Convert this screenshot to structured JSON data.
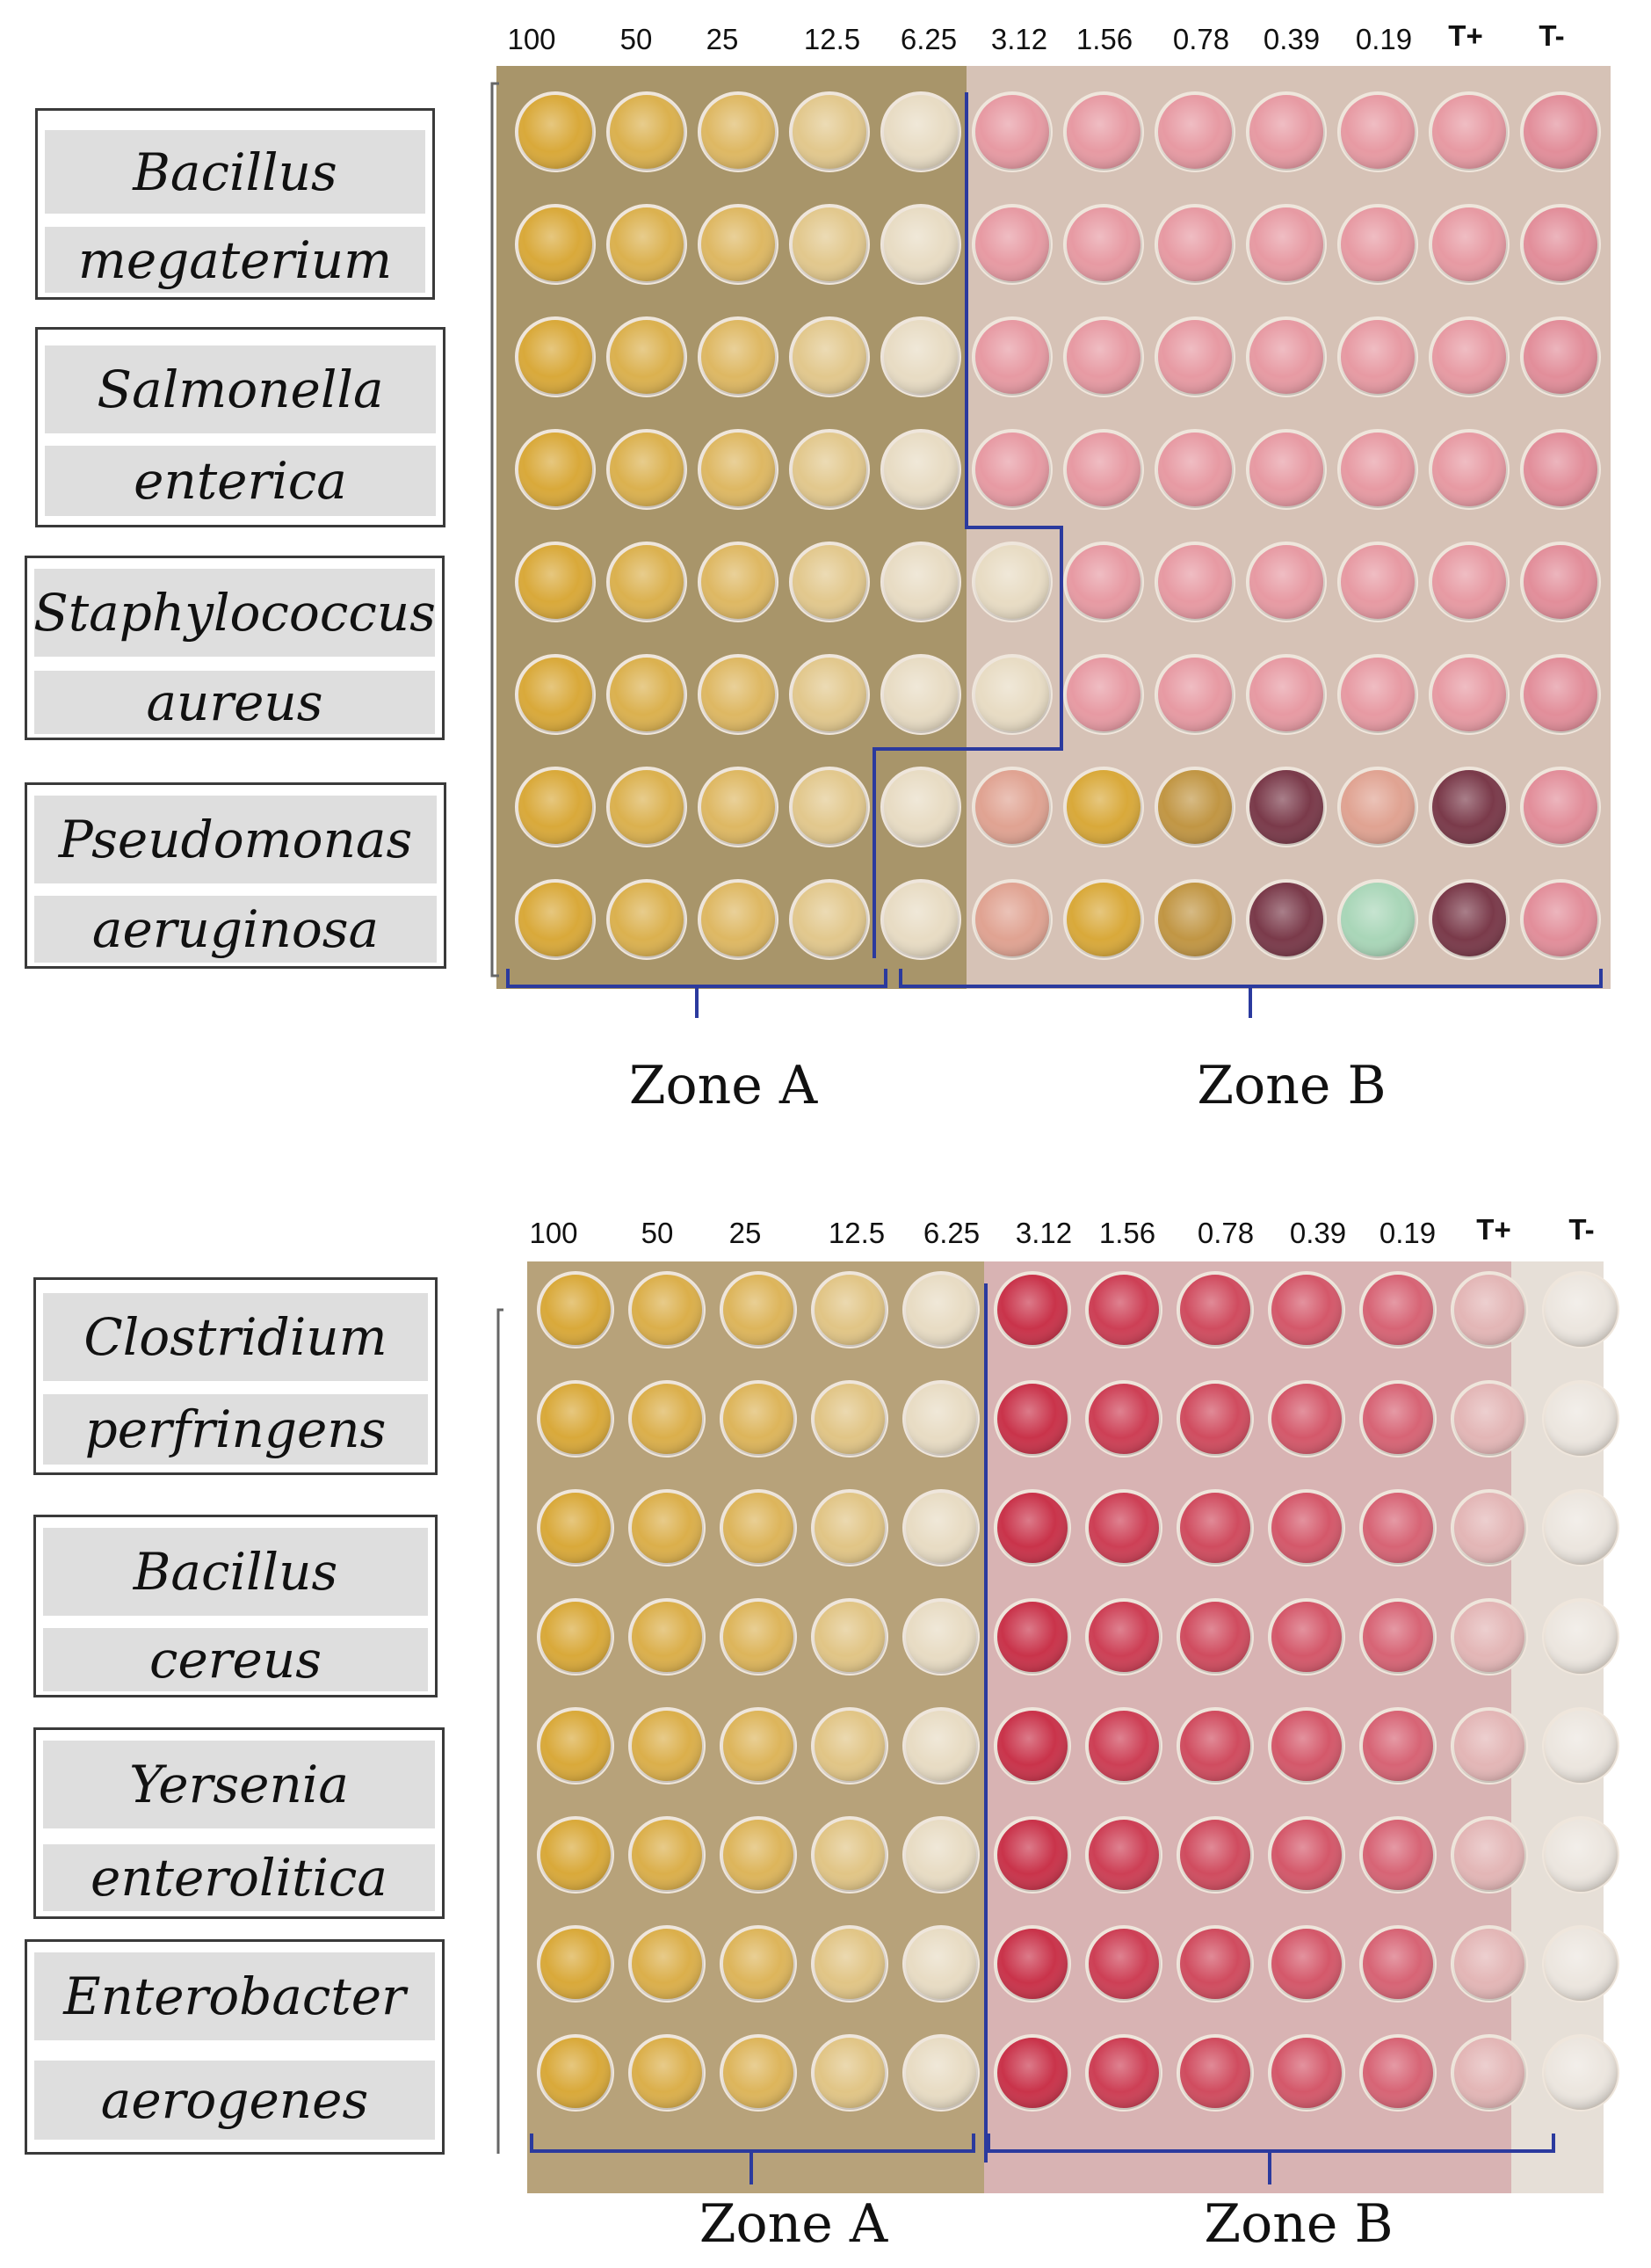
{
  "panels": [
    {
      "concentrations": [
        "100",
        "50",
        "25",
        "12.5",
        "6.25",
        "3.12",
        "1.56",
        "0.78",
        "0.39",
        "0.19",
        "T+",
        "T-"
      ],
      "organisms": [
        {
          "genus": "Bacillus",
          "species": "megaterium"
        },
        {
          "genus": "Salmonella",
          "species": "enterica"
        },
        {
          "genus": "Staphylococcus",
          "species": "aureus"
        },
        {
          "genus": "Pseudomonas",
          "species": "aeruginosa"
        }
      ],
      "zones": [
        "Zone A",
        "Zone B"
      ]
    },
    {
      "concentrations": [
        "100",
        "50",
        "25",
        "12.5",
        "6.25",
        "3.12",
        "1.56",
        "0.78",
        "0.39",
        "0.19",
        "T+",
        "T-"
      ],
      "organisms": [
        {
          "genus": "Clostridium",
          "species": "perfringens"
        },
        {
          "genus": "Bacillus",
          "species": "cereus"
        },
        {
          "genus": "Yersenia",
          "species": "enterolitica"
        },
        {
          "genus": "Enterobacter",
          "species": "aerogenes"
        }
      ],
      "zones": [
        "Zone A",
        "Zone B"
      ]
    }
  ],
  "colors": {
    "boundary_line": "#2b3a9e",
    "brace": "#2b3a9e",
    "yellow_well": "#d9a93a",
    "pale_well": "#e8dcc4",
    "pink_well": "#e79aa3",
    "red_well": "#c9334a"
  }
}
